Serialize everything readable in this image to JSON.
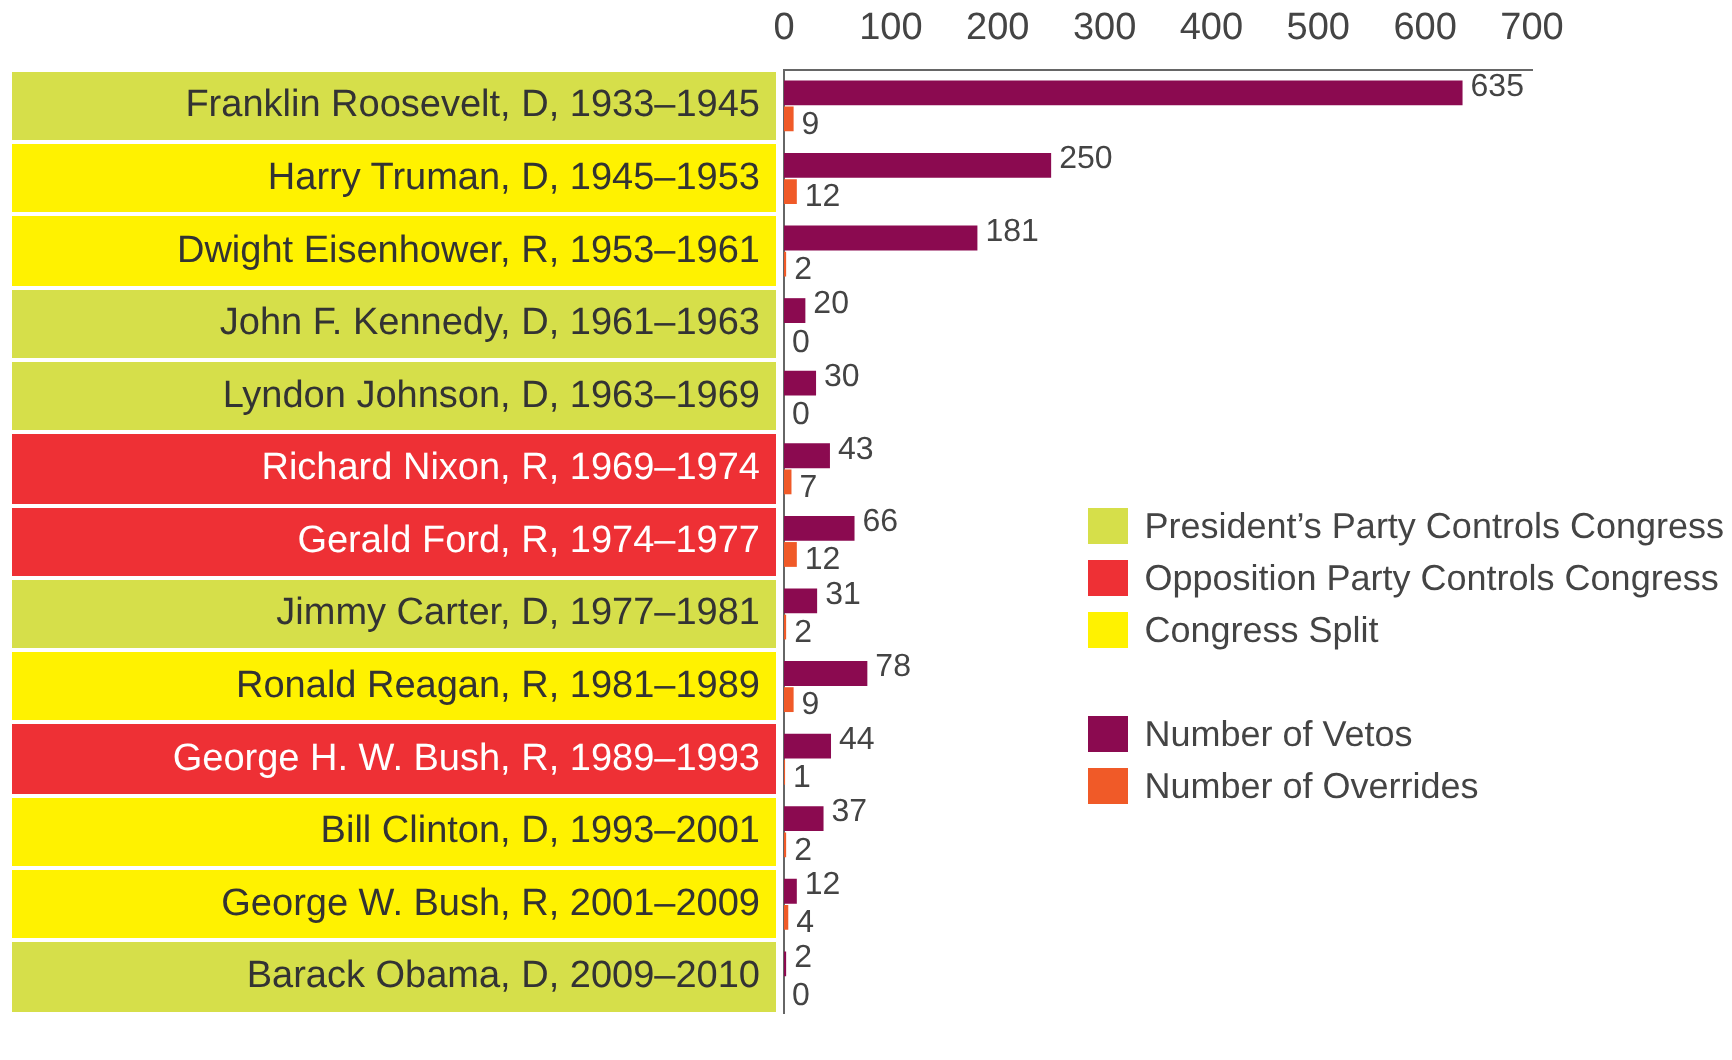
{
  "chart_data": {
    "type": "bar",
    "orientation": "horizontal",
    "categories": [
      "Franklin Roosevelt, D, 1933–1945",
      "Harry Truman, D, 1945–1953",
      "Dwight Eisenhower, R, 1953–1961",
      "John F. Kennedy, D, 1961–1963",
      "Lyndon Johnson, D, 1963–1969",
      "Richard Nixon, R, 1969–1974",
      "Gerald Ford, R, 1974–1977",
      "Jimmy Carter, D, 1977–1981",
      "Ronald Reagan, R, 1981–1989",
      "George H. W. Bush, R, 1989–1993",
      "Bill Clinton, D, 1993–2001",
      "George W. Bush, R, 2001–2009",
      "Barack Obama, D, 2009–2010"
    ],
    "series": [
      {
        "name": "Number of Vetos",
        "color": "#8b0a50",
        "values": [
          635,
          250,
          181,
          20,
          30,
          43,
          66,
          31,
          78,
          44,
          37,
          12,
          2
        ]
      },
      {
        "name": "Number of Overrides",
        "color": "#f05a28",
        "values": [
          9,
          12,
          2,
          0,
          0,
          7,
          12,
          2,
          9,
          1,
          2,
          4,
          0
        ]
      }
    ],
    "xlim": [
      0,
      700
    ],
    "xticks": [
      0,
      100,
      200,
      300,
      400,
      500,
      600,
      700
    ],
    "data_labels": true,
    "legend": "right",
    "grid": false,
    "annotations": [
      "President’s Party Controls Congress",
      "Opposition Party Controls Congress",
      "Congress Split"
    ]
  }
}
